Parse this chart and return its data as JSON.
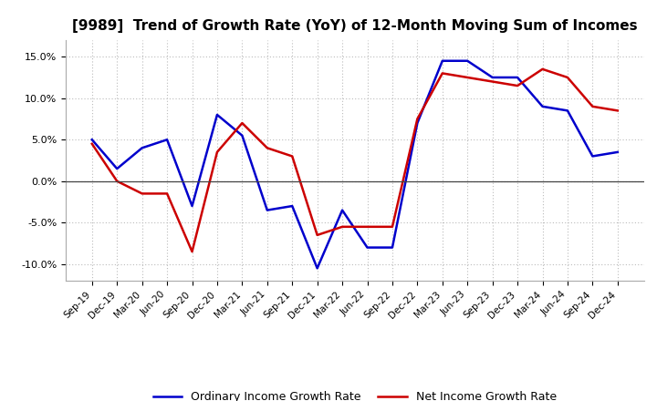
{
  "title": "[9989]  Trend of Growth Rate (YoY) of 12-Month Moving Sum of Incomes",
  "title_fontsize": 11,
  "xlabels": [
    "Sep-19",
    "Dec-19",
    "Mar-20",
    "Jun-20",
    "Sep-20",
    "Dec-20",
    "Mar-21",
    "Jun-21",
    "Sep-21",
    "Dec-21",
    "Mar-22",
    "Jun-22",
    "Sep-22",
    "Dec-22",
    "Mar-23",
    "Jun-23",
    "Sep-23",
    "Dec-23",
    "Mar-24",
    "Jun-24",
    "Sep-24",
    "Dec-24"
  ],
  "ordinary_income": [
    5.0,
    1.5,
    4.0,
    5.0,
    -3.0,
    8.0,
    5.5,
    -3.5,
    -3.0,
    -10.5,
    -3.5,
    -8.0,
    -8.0,
    7.0,
    14.5,
    14.5,
    12.5,
    12.5,
    9.0,
    8.5,
    3.0,
    3.5
  ],
  "net_income": [
    4.5,
    0.0,
    -1.5,
    -1.5,
    -8.5,
    3.5,
    7.0,
    4.0,
    3.0,
    -6.5,
    -5.5,
    -5.5,
    -5.5,
    7.5,
    13.0,
    12.5,
    12.0,
    11.5,
    13.5,
    12.5,
    9.0,
    8.5
  ],
  "ordinary_color": "#0000cc",
  "net_color": "#cc0000",
  "ylim": [
    -12.0,
    17.0
  ],
  "yticks": [
    -10,
    -5,
    0,
    5,
    10,
    15
  ],
  "background_color": "#ffffff",
  "grid_color": "#bbbbbb",
  "legend_ordinary": "Ordinary Income Growth Rate",
  "legend_net": "Net Income Growth Rate",
  "linewidth": 1.8
}
